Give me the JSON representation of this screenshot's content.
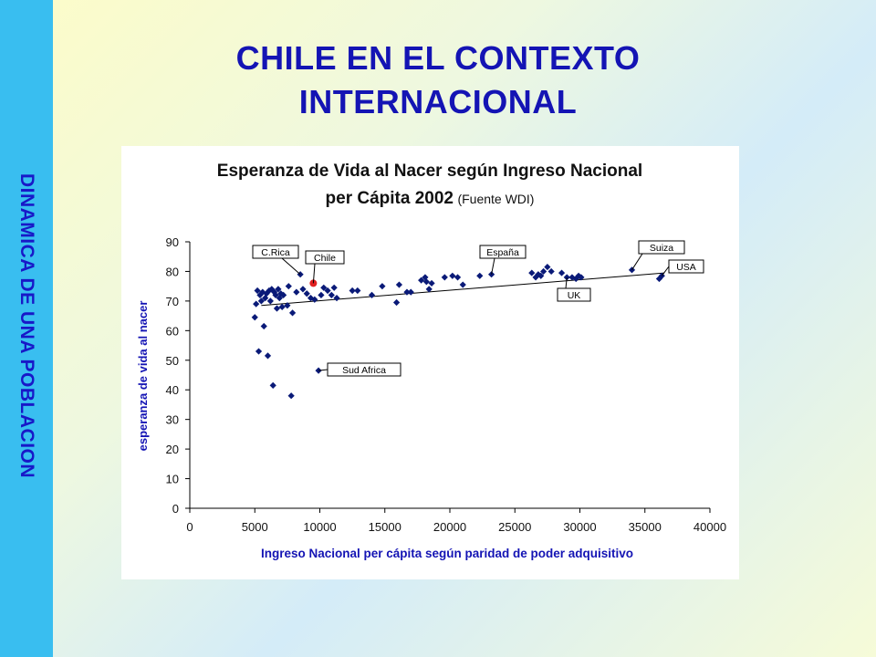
{
  "sidebar": {
    "text": "DINAMICA DE UNA POBLACION"
  },
  "slide": {
    "title_line1": "CHILE EN EL CONTEXTO",
    "title_line2": "INTERNACIONAL"
  },
  "colors": {
    "title": "#1414b4",
    "sidebar_bg": "#39bef0",
    "sidebar_text": "#1818c8",
    "point": "#0a1a78",
    "highlight": "#e02020"
  },
  "chart_data": {
    "type": "scatter",
    "title_line1": "Esperanza de Vida al Nacer según Ingreso Nacional",
    "title_line2_main": "per Cápita 2002",
    "title_line2_source": "(Fuente WDI)",
    "xlabel": "Ingreso Nacional per cápita según paridad de poder adquisitivo",
    "ylabel": "esperanza de vida al nacer",
    "xlim": [
      0,
      40000
    ],
    "ylim": [
      0,
      90
    ],
    "x_ticks": [
      0,
      5000,
      10000,
      15000,
      20000,
      25000,
      30000,
      35000,
      40000
    ],
    "y_ticks": [
      0,
      10,
      20,
      30,
      40,
      50,
      60,
      70,
      80,
      90
    ],
    "grid": false,
    "legend": "none",
    "trendline": [
      [
        5500,
        68.5
      ],
      [
        36500,
        79.5
      ]
    ],
    "series": [
      {
        "points": [
          [
            5000,
            64.5
          ],
          [
            5100,
            69
          ],
          [
            5200,
            73.5
          ],
          [
            5300,
            53
          ],
          [
            5400,
            72
          ],
          [
            5500,
            70
          ],
          [
            5600,
            73
          ],
          [
            5700,
            61.5
          ],
          [
            5800,
            71
          ],
          [
            5900,
            72.5
          ],
          [
            6000,
            51.5
          ],
          [
            6100,
            73.5
          ],
          [
            6200,
            70
          ],
          [
            6300,
            74
          ],
          [
            6400,
            41.5
          ],
          [
            6500,
            73
          ],
          [
            6600,
            72
          ],
          [
            6700,
            67.5
          ],
          [
            6800,
            74
          ],
          [
            6900,
            71
          ],
          [
            7000,
            72.5
          ],
          [
            7100,
            68
          ],
          [
            7200,
            72
          ],
          [
            7500,
            68.5
          ],
          [
            7600,
            75
          ],
          [
            7800,
            38
          ],
          [
            7900,
            66
          ],
          [
            8200,
            73
          ],
          [
            8500,
            79
          ],
          [
            8700,
            74
          ],
          [
            9000,
            72.5
          ],
          [
            9300,
            71
          ],
          [
            9600,
            70.5
          ],
          [
            9900,
            46.5
          ],
          [
            10100,
            72
          ],
          [
            10300,
            74.5
          ],
          [
            10600,
            73.5
          ],
          [
            10900,
            72
          ],
          [
            11100,
            74.5
          ],
          [
            11300,
            71
          ],
          [
            12500,
            73.5
          ],
          [
            12900,
            73.5
          ],
          [
            14000,
            72
          ],
          [
            14800,
            75
          ],
          [
            15900,
            69.5
          ],
          [
            16100,
            75.5
          ],
          [
            16700,
            73
          ],
          [
            17000,
            73
          ],
          [
            17800,
            77
          ],
          [
            18100,
            78
          ],
          [
            18200,
            76.5
          ],
          [
            18400,
            74
          ],
          [
            18600,
            76
          ],
          [
            19600,
            78
          ],
          [
            20200,
            78.5
          ],
          [
            20600,
            78
          ],
          [
            21000,
            75.5
          ],
          [
            22300,
            78.5
          ],
          [
            23200,
            79
          ],
          [
            26300,
            79.5
          ],
          [
            26600,
            78
          ],
          [
            26800,
            79
          ],
          [
            27000,
            78.5
          ],
          [
            27200,
            80
          ],
          [
            27500,
            81.5
          ],
          [
            27800,
            80
          ],
          [
            28600,
            79.5
          ],
          [
            29000,
            78
          ],
          [
            29400,
            78
          ],
          [
            29700,
            77.5
          ],
          [
            29900,
            78.5
          ],
          [
            30100,
            78
          ],
          [
            34000,
            80.5
          ],
          [
            36100,
            77.5
          ],
          [
            36300,
            78.5
          ]
        ]
      }
    ],
    "highlight_points": [
      {
        "label": "Chile",
        "point": [
          9500,
          76
        ]
      }
    ],
    "annotations": [
      {
        "text": "C.Rica",
        "target": [
          8500,
          79
        ]
      },
      {
        "text": "Chile",
        "target": [
          9500,
          76
        ]
      },
      {
        "text": "España",
        "target": [
          23200,
          79
        ]
      },
      {
        "text": "Suiza",
        "target": [
          34000,
          80.5
        ]
      },
      {
        "text": "USA",
        "target": [
          36300,
          78.5
        ]
      },
      {
        "text": "UK",
        "target": [
          29000,
          78
        ]
      },
      {
        "text": "Sud Africa",
        "target": [
          9900,
          46.5
        ]
      }
    ]
  }
}
